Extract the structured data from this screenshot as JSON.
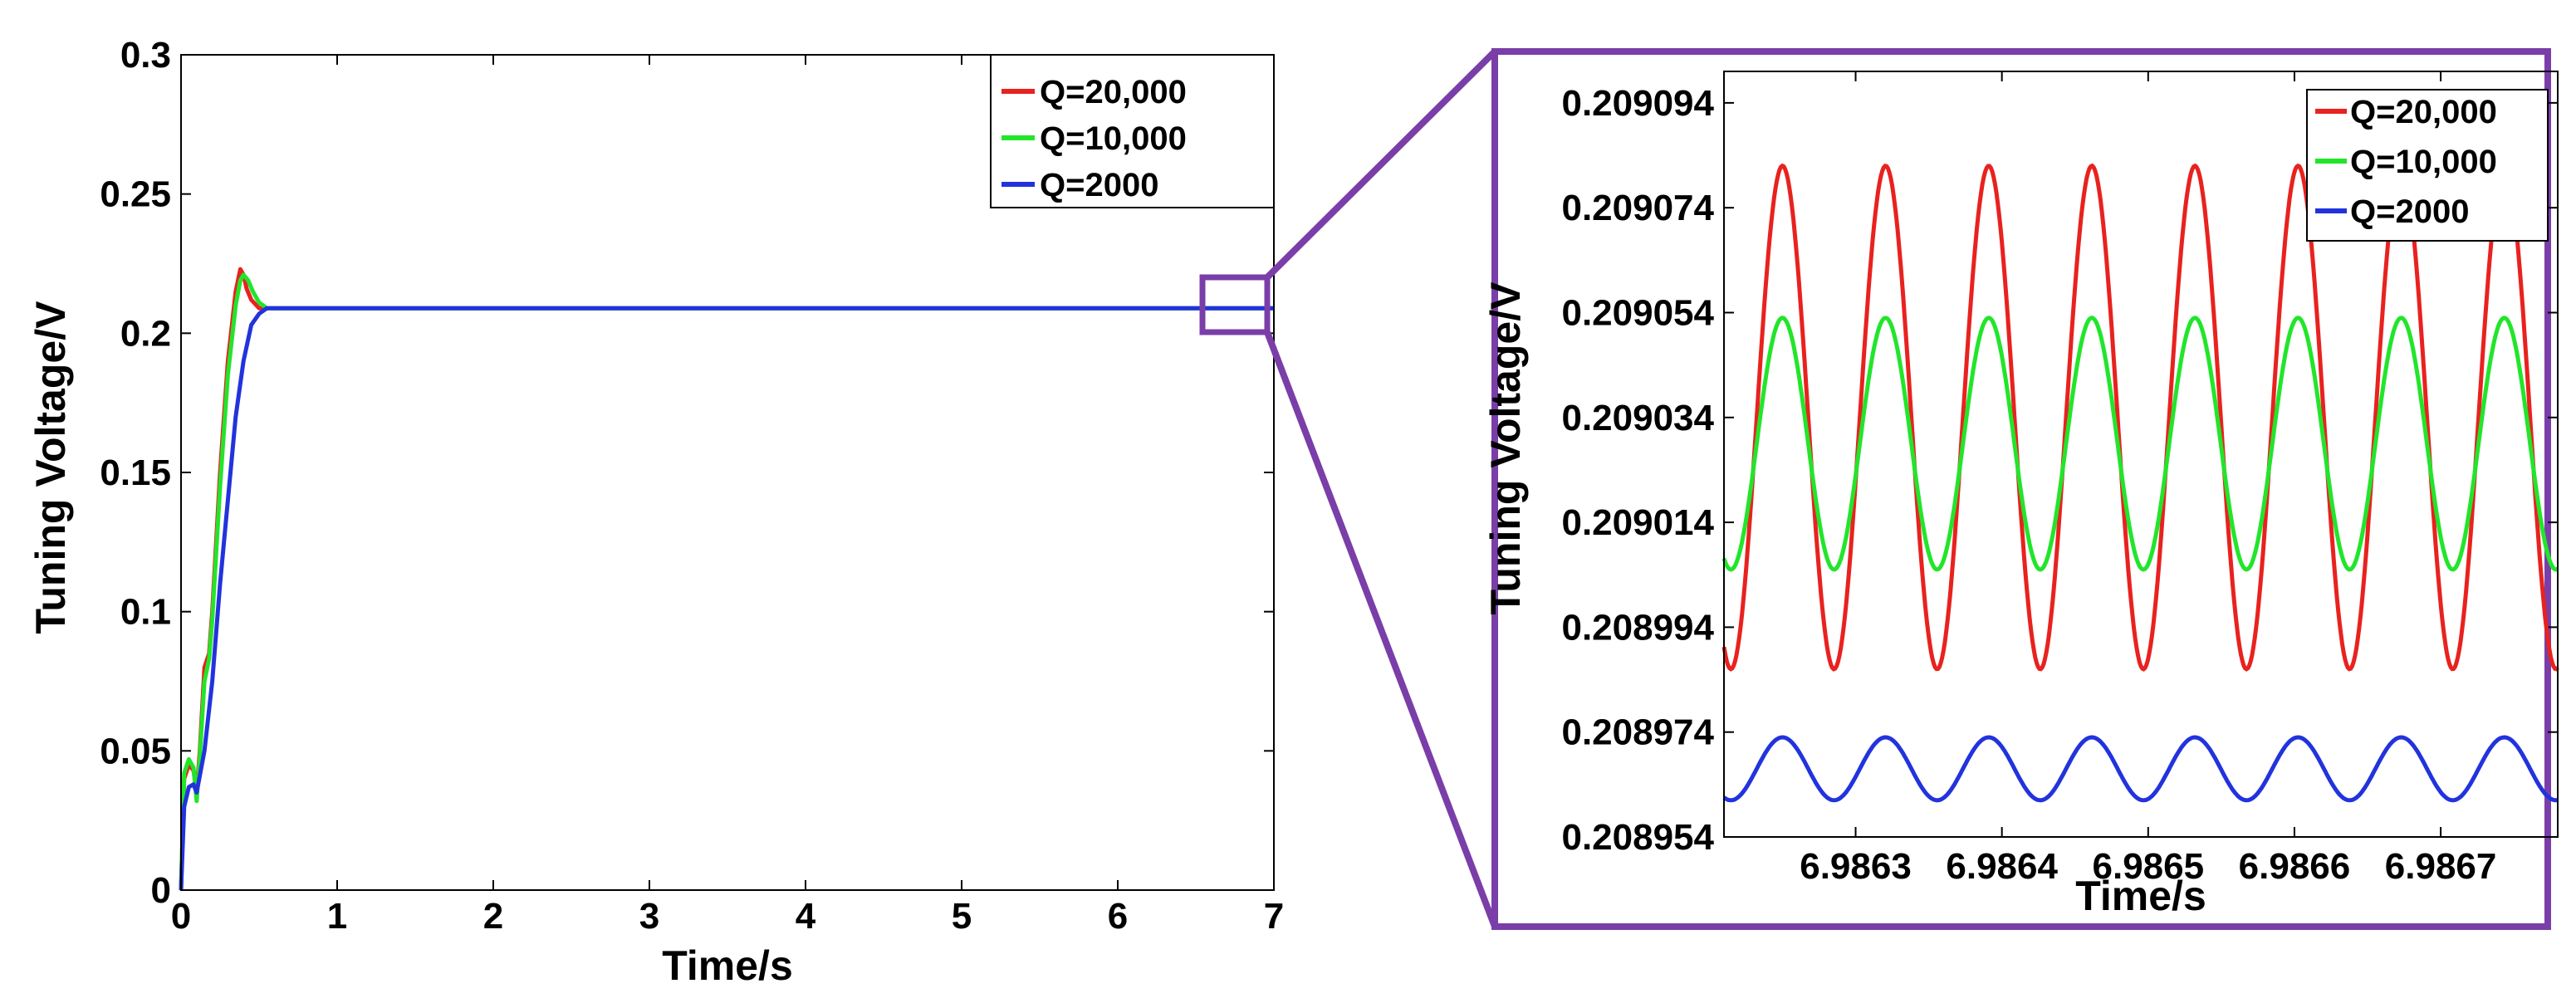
{
  "colors": {
    "q20000": "#e8221f",
    "q10000": "#22e52b",
    "q2000": "#2233dd",
    "zoom_frame": "#7a3ea8"
  },
  "chart_data": [
    {
      "type": "line",
      "xlabel": "Time/s",
      "ylabel": "Tuning Voltage/V",
      "xlim": [
        0,
        7
      ],
      "ylim": [
        0,
        0.3
      ],
      "xticks": [
        "0",
        "1",
        "2",
        "3",
        "4",
        "5",
        "6",
        "7"
      ],
      "yticks": [
        "0",
        "0.05",
        "0.1",
        "0.15",
        "0.2",
        "0.25",
        "0.3"
      ],
      "legend_position": "top-right",
      "grid": false,
      "series": [
        {
          "name": "Q=20,000",
          "color_key": "q20000",
          "x": [
            0,
            0.02,
            0.05,
            0.08,
            0.1,
            0.12,
            0.15,
            0.18,
            0.2,
            0.25,
            0.3,
            0.35,
            0.38,
            0.4,
            0.42,
            0.45,
            0.5,
            0.55,
            0.6,
            1,
            2,
            3,
            4,
            5,
            6,
            7
          ],
          "y": [
            0,
            0.04,
            0.045,
            0.043,
            0.035,
            0.05,
            0.08,
            0.085,
            0.1,
            0.15,
            0.19,
            0.215,
            0.223,
            0.221,
            0.216,
            0.212,
            0.209,
            0.209,
            0.209,
            0.209,
            0.209,
            0.209,
            0.209,
            0.209,
            0.209,
            0.209
          ]
        },
        {
          "name": "Q=10,000",
          "color_key": "q10000",
          "x": [
            0,
            0.02,
            0.05,
            0.08,
            0.1,
            0.12,
            0.15,
            0.18,
            0.2,
            0.25,
            0.3,
            0.35,
            0.38,
            0.4,
            0.43,
            0.46,
            0.5,
            0.55,
            0.6,
            1,
            2,
            3,
            4,
            5,
            6,
            7
          ],
          "y": [
            0,
            0.042,
            0.047,
            0.044,
            0.032,
            0.048,
            0.075,
            0.083,
            0.097,
            0.145,
            0.185,
            0.21,
            0.219,
            0.221,
            0.219,
            0.215,
            0.211,
            0.209,
            0.209,
            0.209,
            0.209,
            0.209,
            0.209,
            0.209,
            0.209,
            0.209
          ]
        },
        {
          "name": "Q=2000",
          "color_key": "q2000",
          "x": [
            0,
            0.02,
            0.05,
            0.08,
            0.1,
            0.15,
            0.2,
            0.25,
            0.3,
            0.35,
            0.4,
            0.45,
            0.5,
            0.55,
            0.6,
            1,
            2,
            3,
            4,
            5,
            6,
            7
          ],
          "y": [
            0,
            0.03,
            0.037,
            0.038,
            0.035,
            0.05,
            0.075,
            0.11,
            0.14,
            0.17,
            0.19,
            0.203,
            0.207,
            0.209,
            0.209,
            0.209,
            0.209,
            0.209,
            0.209,
            0.209,
            0.209,
            0.209
          ]
        }
      ]
    },
    {
      "type": "line",
      "xlabel": "Time/s",
      "ylabel": "Tuning Voltage/V",
      "xlim": [
        6.98621,
        6.98678
      ],
      "ylim": [
        0.208954,
        0.2091
      ],
      "xtick_values": [
        6.9863,
        6.9864,
        6.9865,
        6.9866,
        6.9867
      ],
      "xticks": [
        "6.9863",
        "6.9864",
        "6.9865",
        "6.9866",
        "6.9867"
      ],
      "ytick_values": [
        0.208954,
        0.208974,
        0.208994,
        0.209014,
        0.209034,
        0.209054,
        0.209074,
        0.209094
      ],
      "yticks": [
        "0.208954",
        "0.208974",
        "0.208994",
        "0.209014",
        "0.209034",
        "0.209054",
        "0.209074",
        "0.209094"
      ],
      "legend_position": "top-right",
      "grid": false,
      "oscillation_period": 7.05e-05,
      "series": [
        {
          "name": "Q=20,000",
          "color_key": "q20000",
          "mean": 0.209034,
          "amplitude": 4.8e-05,
          "first_peak_x": 6.98625
        },
        {
          "name": "Q=10,000",
          "color_key": "q10000",
          "mean": 0.209029,
          "amplitude": 2.4e-05,
          "first_peak_x": 6.98625
        },
        {
          "name": "Q=2000",
          "color_key": "q2000",
          "mean": 0.208967,
          "amplitude": 6e-06,
          "first_peak_x": 6.98625
        }
      ]
    }
  ]
}
